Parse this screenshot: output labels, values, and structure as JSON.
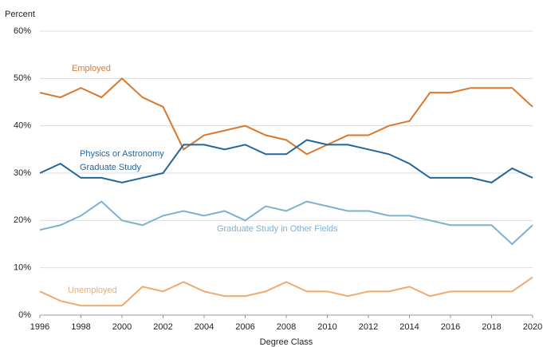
{
  "chart_data": {
    "type": "line",
    "ylabel": "Percent",
    "xlabel": "Degree Class",
    "x": [
      1996,
      1997,
      1998,
      1999,
      2000,
      2001,
      2002,
      2003,
      2004,
      2005,
      2006,
      2007,
      2008,
      2009,
      2010,
      2011,
      2012,
      2013,
      2014,
      2015,
      2016,
      2017,
      2018,
      2019,
      2020
    ],
    "series": [
      {
        "name": "Employed",
        "color": "#d9782d",
        "values": [
          47,
          46,
          48,
          46,
          50,
          46,
          44,
          35,
          38,
          39,
          40,
          38,
          37,
          34,
          36,
          38,
          38,
          40,
          41,
          47,
          47,
          48,
          48,
          48,
          44
        ]
      },
      {
        "name": "Physics or Astronomy Graduate Study",
        "color": "#23679a",
        "values": [
          30,
          32,
          29,
          29,
          28,
          29,
          30,
          36,
          36,
          35,
          36,
          34,
          34,
          37,
          36,
          36,
          35,
          34,
          32,
          29,
          29,
          29,
          28,
          31,
          29
        ]
      },
      {
        "name": "Graduate Study in Other Fields",
        "color": "#7fb1cc",
        "values": [
          18,
          19,
          21,
          24,
          20,
          19,
          21,
          22,
          21,
          22,
          20,
          23,
          22,
          24,
          23,
          22,
          22,
          21,
          21,
          20,
          19,
          19,
          19,
          15,
          19
        ]
      },
      {
        "name": "Unemployed",
        "color": "#f0a96e",
        "values": [
          5,
          3,
          2,
          2,
          2,
          6,
          5,
          7,
          5,
          4,
          4,
          5,
          7,
          5,
          5,
          4,
          5,
          5,
          6,
          4,
          5,
          5,
          5,
          5,
          8
        ]
      }
    ],
    "xlim": [
      1996,
      2020
    ],
    "xticks": [
      1996,
      1998,
      2000,
      2002,
      2004,
      2006,
      2008,
      2010,
      2012,
      2014,
      2016,
      2018,
      2020
    ],
    "ylim": [
      0,
      60
    ],
    "yticks": [
      {
        "value": 0,
        "label": "0%"
      },
      {
        "value": 10,
        "label": "10%"
      },
      {
        "value": 20,
        "label": "20%"
      },
      {
        "value": 30,
        "label": "30%"
      },
      {
        "value": 40,
        "label": "40%"
      },
      {
        "value": 50,
        "label": "50%"
      },
      {
        "value": 60,
        "label": "60%"
      }
    ],
    "grid": true
  }
}
